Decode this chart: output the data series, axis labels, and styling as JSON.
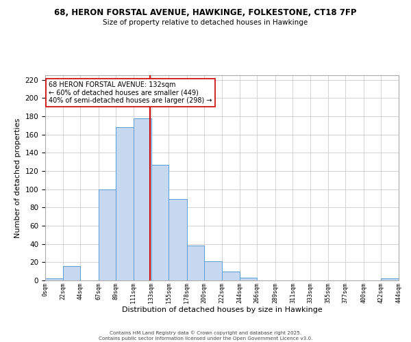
{
  "title_line1": "68, HERON FORSTAL AVENUE, HAWKINGE, FOLKESTONE, CT18 7FP",
  "title_line2": "Size of property relative to detached houses in Hawkinge",
  "bar_edges": [
    0,
    22,
    44,
    67,
    89,
    111,
    133,
    155,
    178,
    200,
    222,
    244,
    266,
    289,
    311,
    333,
    355,
    377,
    400,
    422,
    444
  ],
  "bar_heights": [
    2,
    16,
    0,
    100,
    168,
    178,
    127,
    89,
    38,
    21,
    10,
    3,
    0,
    0,
    0,
    0,
    0,
    0,
    0,
    2
  ],
  "bar_color": "#c6d9f0",
  "bar_edge_color": "#5b9bd5",
  "property_value": 132,
  "vline_color": "#cc0000",
  "xlabel": "Distribution of detached houses by size in Hawkinge",
  "ylabel": "Number of detached properties",
  "ylim": [
    0,
    225
  ],
  "yticks": [
    0,
    20,
    40,
    60,
    80,
    100,
    120,
    140,
    160,
    180,
    200,
    220
  ],
  "xtick_labels": [
    "0sqm",
    "22sqm",
    "44sqm",
    "67sqm",
    "89sqm",
    "111sqm",
    "133sqm",
    "155sqm",
    "178sqm",
    "200sqm",
    "222sqm",
    "244sqm",
    "266sqm",
    "289sqm",
    "311sqm",
    "333sqm",
    "355sqm",
    "377sqm",
    "400sqm",
    "422sqm",
    "444sqm"
  ],
  "annotation_title": "68 HERON FORSTAL AVENUE: 132sqm",
  "annotation_line1": "← 60% of detached houses are smaller (449)",
  "annotation_line2": "40% of semi-detached houses are larger (298) →",
  "annotation_box_color": "#ffffff",
  "annotation_box_edge": "#cc0000",
  "grid_color": "#cccccc",
  "background_color": "#ffffff",
  "footer_line1": "Contains HM Land Registry data © Crown copyright and database right 2025.",
  "footer_line2": "Contains public sector information licensed under the Open Government Licence v3.0."
}
